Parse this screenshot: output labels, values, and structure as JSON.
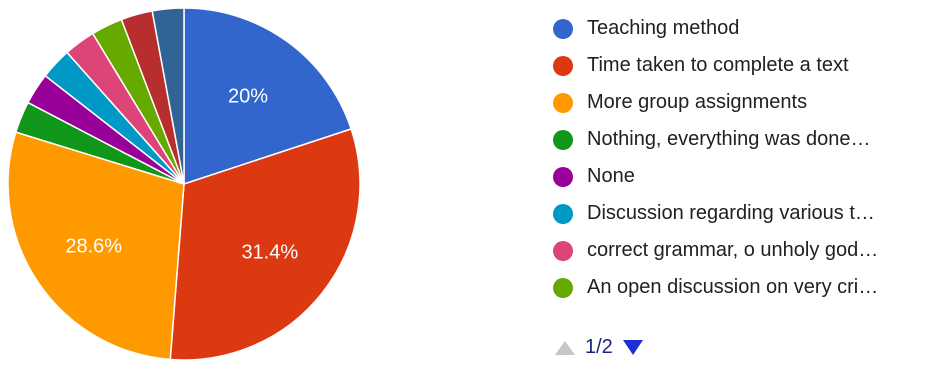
{
  "chart_data": {
    "type": "pie",
    "slices": [
      {
        "name": "Teaching method",
        "value": 20,
        "label": "20%",
        "color": "#3366cc"
      },
      {
        "name": "Time taken to complete a text",
        "value": 31.4,
        "label": "31.4%",
        "color": "#dc3912"
      },
      {
        "name": "More group assignments",
        "value": 28.6,
        "label": "28.6%",
        "color": "#ff9900"
      },
      {
        "name": "Nothing, everything was done…",
        "value": 2.9,
        "label": "",
        "color": "#109618"
      },
      {
        "name": "None",
        "value": 2.9,
        "label": "",
        "color": "#990099"
      },
      {
        "name": "Discussion regarding various t…",
        "value": 2.9,
        "label": "",
        "color": "#0099c6"
      },
      {
        "name": "correct grammar, o unholy god…",
        "value": 2.9,
        "label": "",
        "color": "#dd4477"
      },
      {
        "name": "An open discussion on very cri…",
        "value": 2.9,
        "label": "",
        "color": "#66aa00"
      },
      {
        "name": "",
        "value": 2.9,
        "label": "",
        "color": "#b82e2e"
      },
      {
        "name": "",
        "value": 2.9,
        "label": "",
        "color": "#316395"
      }
    ],
    "start_angle_deg": 90,
    "direction": "clockwise",
    "legend_position": "right"
  },
  "legend": {
    "items": [
      {
        "label": "Teaching method",
        "color": "#3366cc"
      },
      {
        "label": "Time taken to complete a text",
        "color": "#dc3912"
      },
      {
        "label": "More group assignments",
        "color": "#ff9900"
      },
      {
        "label": "Nothing, everything was done…",
        "color": "#109618"
      },
      {
        "label": "None",
        "color": "#990099"
      },
      {
        "label": "Discussion regarding various t…",
        "color": "#0099c6"
      },
      {
        "label": "correct grammar, o unholy god…",
        "color": "#dd4477"
      },
      {
        "label": "An open discussion on very cri…",
        "color": "#66aa00"
      }
    ]
  },
  "pager": {
    "page_text": "1/2",
    "prev_icon": "triangle-up-icon",
    "next_icon": "triangle-down-icon",
    "prev_color": "#c6c6c6",
    "next_color": "#1e2fd4"
  }
}
